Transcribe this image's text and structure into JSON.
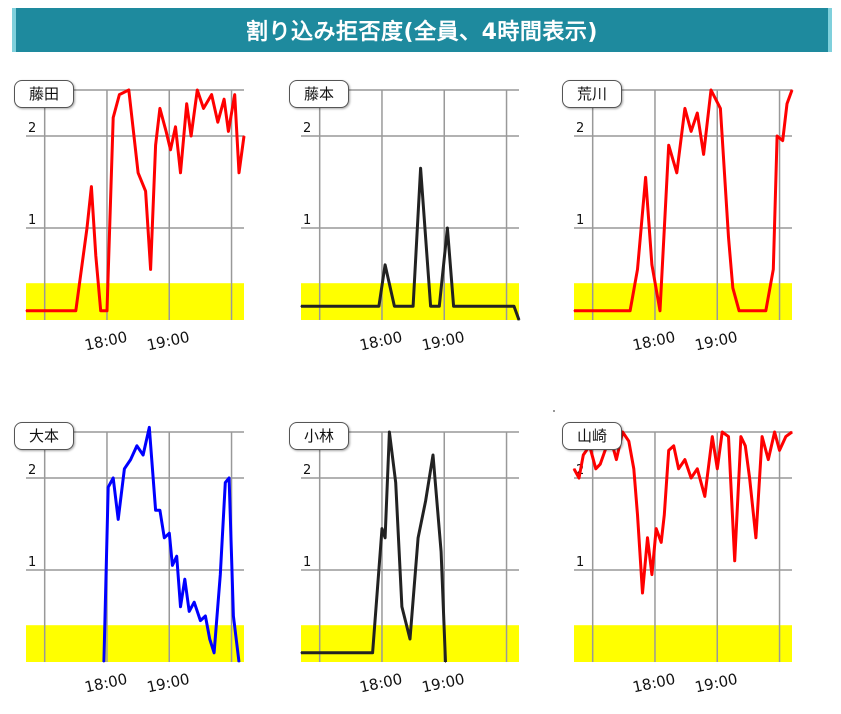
{
  "title": "割り込み拒否度(全員、4時間表示)",
  "y_tick_labels": [
    "1",
    "2"
  ],
  "x_tick_labels": [
    "18:00",
    "19:00"
  ],
  "colors": {
    "band": "#ffff00",
    "grid": "#999999",
    "banner": "#1e8a9e"
  },
  "chart_data": [
    {
      "type": "line",
      "name": "藤田",
      "color": "#ff0000",
      "xlim": [
        16.7,
        20.2
      ],
      "ylim": [
        0.0,
        2.5
      ],
      "band": [
        0.0,
        0.4
      ],
      "x": [
        16.7,
        17.5,
        17.68,
        17.75,
        17.82,
        17.9,
        18.0,
        18.1,
        18.2,
        18.35,
        18.5,
        18.62,
        18.7,
        18.78,
        18.85,
        18.95,
        19.02,
        19.1,
        19.18,
        19.28,
        19.35,
        19.45,
        19.55,
        19.68,
        19.78,
        19.88,
        19.95,
        20.05,
        20.12,
        20.2
      ],
      "y": [
        0.1,
        0.1,
        1.0,
        1.45,
        0.7,
        0.1,
        0.1,
        2.2,
        2.45,
        2.5,
        1.6,
        1.4,
        0.55,
        1.9,
        2.3,
        2.05,
        1.85,
        2.1,
        1.6,
        2.35,
        2.0,
        2.5,
        2.3,
        2.45,
        2.15,
        2.4,
        2.05,
        2.45,
        1.6,
        2.0
      ]
    },
    {
      "type": "line",
      "name": "藤本",
      "color": "#222222",
      "xlim": [
        16.7,
        20.2
      ],
      "ylim": [
        0.0,
        2.5
      ],
      "band": [
        0.0,
        0.4
      ],
      "x": [
        16.7,
        17.8,
        17.95,
        18.05,
        18.2,
        18.35,
        18.5,
        18.62,
        18.78,
        18.92,
        19.05,
        19.15,
        19.3,
        19.6,
        19.95,
        20.12,
        20.2
      ],
      "y": [
        0.15,
        0.15,
        0.15,
        0.6,
        0.15,
        0.15,
        0.15,
        1.65,
        0.15,
        0.15,
        1.0,
        0.15,
        0.15,
        0.15,
        0.15,
        0.15,
        0.0
      ]
    },
    {
      "type": "line",
      "name": "荒川",
      "color": "#ff0000",
      "xlim": [
        16.7,
        20.2
      ],
      "ylim": [
        0.0,
        2.5
      ],
      "band": [
        0.0,
        0.4
      ],
      "x": [
        16.7,
        17.6,
        17.72,
        17.85,
        17.95,
        18.08,
        18.22,
        18.35,
        18.48,
        18.58,
        18.68,
        18.78,
        18.9,
        19.05,
        19.18,
        19.25,
        19.35,
        19.55,
        19.78,
        19.9,
        19.96,
        20.05,
        20.12,
        20.2
      ],
      "y": [
        0.1,
        0.1,
        0.55,
        1.55,
        0.6,
        0.1,
        1.9,
        1.6,
        2.3,
        2.05,
        2.25,
        1.8,
        2.5,
        2.3,
        0.9,
        0.35,
        0.1,
        0.1,
        0.1,
        0.55,
        2.0,
        1.95,
        2.35,
        2.5
      ]
    },
    {
      "type": "line",
      "name": "大本",
      "color": "#0000ff",
      "xlim": [
        16.7,
        20.2
      ],
      "ylim": [
        0.0,
        2.5
      ],
      "band": [
        0.0,
        0.4
      ],
      "x": [
        17.95,
        18.02,
        18.1,
        18.18,
        18.28,
        18.38,
        18.48,
        18.58,
        18.68,
        18.78,
        18.85,
        18.92,
        19.0,
        19.05,
        19.12,
        19.18,
        19.25,
        19.32,
        19.4,
        19.5,
        19.58,
        19.65,
        19.72,
        19.82,
        19.9,
        19.96,
        20.03,
        20.12
      ],
      "y": [
        0.0,
        1.9,
        2.0,
        1.55,
        2.1,
        2.2,
        2.35,
        2.25,
        2.55,
        1.65,
        1.65,
        1.35,
        1.4,
        1.05,
        1.15,
        0.6,
        0.9,
        0.55,
        0.65,
        0.45,
        0.5,
        0.25,
        0.1,
        0.95,
        1.95,
        2.0,
        0.5,
        0.0
      ]
    },
    {
      "type": "line",
      "name": "小林",
      "color": "#222222",
      "xlim": [
        16.7,
        20.2
      ],
      "ylim": [
        0.0,
        2.5
      ],
      "band": [
        0.0,
        0.4
      ],
      "x": [
        16.7,
        17.85,
        18.0,
        18.05,
        18.12,
        18.22,
        18.32,
        18.45,
        18.58,
        18.7,
        18.82,
        18.95,
        19.02
      ],
      "y": [
        0.1,
        0.1,
        1.45,
        1.35,
        2.5,
        1.95,
        0.6,
        0.25,
        1.35,
        1.75,
        2.25,
        1.2,
        0.0
      ]
    },
    {
      "type": "line",
      "name": "山崎",
      "color": "#ff0000",
      "xlim": [
        16.7,
        20.2
      ],
      "ylim": [
        0.0,
        2.5
      ],
      "band": [
        0.0,
        0.4
      ],
      "x": [
        16.7,
        16.78,
        16.85,
        16.95,
        17.05,
        17.12,
        17.2,
        17.28,
        17.38,
        17.48,
        17.58,
        17.66,
        17.72,
        17.8,
        17.88,
        17.95,
        18.02,
        18.1,
        18.15,
        18.22,
        18.3,
        18.38,
        18.48,
        18.58,
        18.68,
        18.8,
        18.92,
        19.0,
        19.08,
        19.18,
        19.28,
        19.38,
        19.45,
        19.52,
        19.62,
        19.72,
        19.82,
        19.92,
        20.0,
        20.1,
        20.2
      ],
      "y": [
        2.1,
        2.0,
        2.25,
        2.35,
        2.1,
        2.15,
        2.3,
        2.45,
        2.2,
        2.5,
        2.4,
        2.1,
        1.6,
        0.75,
        1.35,
        0.95,
        1.45,
        1.3,
        1.6,
        2.3,
        2.35,
        2.1,
        2.2,
        2.0,
        2.1,
        1.8,
        2.45,
        2.1,
        2.5,
        2.45,
        1.1,
        2.45,
        2.35,
        2.0,
        1.35,
        2.45,
        2.2,
        2.5,
        2.3,
        2.45,
        2.5
      ]
    }
  ]
}
